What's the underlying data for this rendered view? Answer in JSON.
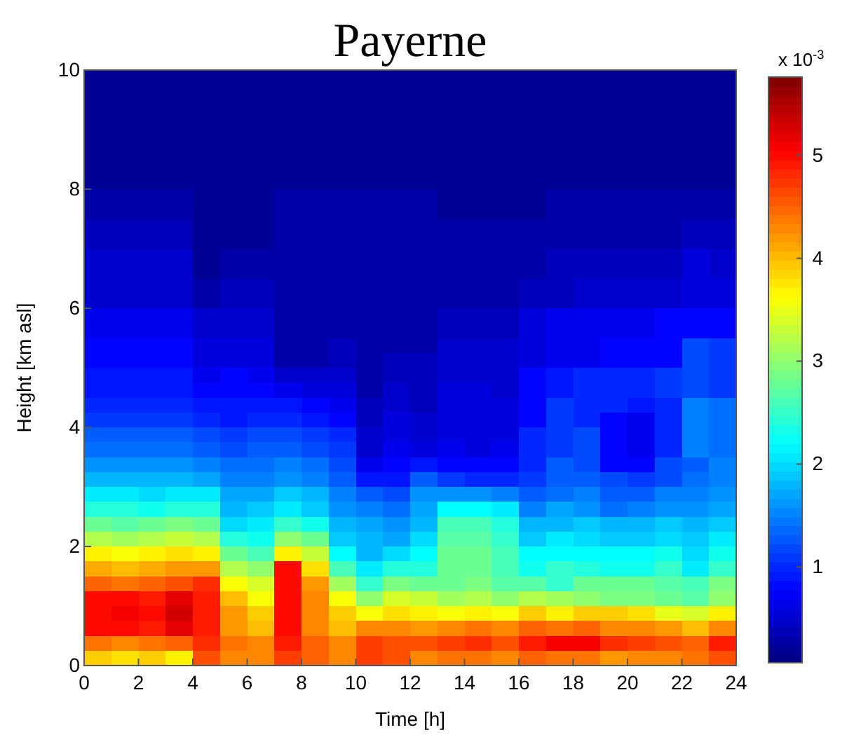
{
  "chart_data": {
    "type": "heatmap",
    "title": "Payerne",
    "xlabel": "Time [h]",
    "ylabel": "Height [km asl]",
    "clabel": "x 10$^{-3}$",
    "xlim": [
      0,
      24
    ],
    "xticks": [
      0,
      2,
      4,
      6,
      8,
      10,
      12,
      14,
      16,
      18,
      20,
      22,
      24
    ],
    "ylim": [
      0,
      10
    ],
    "yticks": [
      0,
      2,
      4,
      6,
      8,
      10
    ],
    "clim": [
      0.07,
      5.76
    ],
    "cticks": [
      1,
      2,
      3,
      4,
      5
    ],
    "cells": [
      [
        0.2,
        0.2,
        0.2,
        0.2,
        0.2,
        0.2,
        0.2,
        0.2,
        0.2,
        0.2,
        0.2,
        0.2,
        0.2,
        0.2,
        0.2,
        0.2,
        0.2,
        0.2,
        0.2,
        0.2,
        0.2,
        0.2,
        0.2,
        0.2
      ],
      [
        0.2,
        0.2,
        0.2,
        0.2,
        0.2,
        0.2,
        0.2,
        0.2,
        0.2,
        0.2,
        0.2,
        0.2,
        0.2,
        0.2,
        0.2,
        0.2,
        0.2,
        0.2,
        0.2,
        0.2,
        0.2,
        0.2,
        0.2,
        0.2
      ],
      [
        0.2,
        0.2,
        0.2,
        0.2,
        0.2,
        0.2,
        0.2,
        0.2,
        0.2,
        0.2,
        0.2,
        0.2,
        0.2,
        0.2,
        0.2,
        0.2,
        0.2,
        0.2,
        0.2,
        0.2,
        0.2,
        0.2,
        0.2,
        0.2
      ],
      [
        0.2,
        0.2,
        0.2,
        0.2,
        0.2,
        0.2,
        0.2,
        0.2,
        0.2,
        0.2,
        0.2,
        0.2,
        0.2,
        0.2,
        0.2,
        0.2,
        0.2,
        0.2,
        0.2,
        0.2,
        0.2,
        0.2,
        0.2,
        0.2
      ],
      [
        0.2,
        0.2,
        0.2,
        0.2,
        0.2,
        0.2,
        0.2,
        0.2,
        0.2,
        0.2,
        0.2,
        0.2,
        0.2,
        0.2,
        0.2,
        0.2,
        0.2,
        0.2,
        0.2,
        0.2,
        0.2,
        0.2,
        0.2,
        0.2
      ],
      [
        0.2,
        0.2,
        0.2,
        0.2,
        0.2,
        0.2,
        0.2,
        0.2,
        0.2,
        0.2,
        0.2,
        0.2,
        0.2,
        0.2,
        0.2,
        0.2,
        0.2,
        0.2,
        0.2,
        0.2,
        0.2,
        0.2,
        0.2,
        0.2
      ],
      [
        0.2,
        0.2,
        0.2,
        0.2,
        0.2,
        0.2,
        0.2,
        0.2,
        0.2,
        0.2,
        0.2,
        0.2,
        0.2,
        0.2,
        0.2,
        0.2,
        0.2,
        0.2,
        0.2,
        0.2,
        0.2,
        0.2,
        0.2,
        0.2
      ],
      [
        0.2,
        0.2,
        0.2,
        0.2,
        0.2,
        0.2,
        0.2,
        0.2,
        0.2,
        0.2,
        0.2,
        0.2,
        0.2,
        0.2,
        0.2,
        0.2,
        0.2,
        0.2,
        0.2,
        0.2,
        0.2,
        0.2,
        0.2,
        0.2
      ],
      [
        0.3,
        0.3,
        0.3,
        0.3,
        0.2,
        0.2,
        0.2,
        0.3,
        0.3,
        0.3,
        0.3,
        0.3,
        0.3,
        0.2,
        0.2,
        0.2,
        0.2,
        0.3,
        0.3,
        0.3,
        0.3,
        0.3,
        0.3,
        0.3
      ],
      [
        0.3,
        0.3,
        0.3,
        0.3,
        0.2,
        0.2,
        0.2,
        0.3,
        0.3,
        0.3,
        0.3,
        0.3,
        0.3,
        0.2,
        0.2,
        0.2,
        0.2,
        0.3,
        0.3,
        0.3,
        0.3,
        0.3,
        0.3,
        0.3
      ],
      [
        0.4,
        0.4,
        0.4,
        0.4,
        0.2,
        0.2,
        0.2,
        0.3,
        0.3,
        0.3,
        0.3,
        0.3,
        0.3,
        0.3,
        0.3,
        0.3,
        0.3,
        0.3,
        0.3,
        0.3,
        0.3,
        0.3,
        0.4,
        0.4
      ],
      [
        0.4,
        0.4,
        0.4,
        0.4,
        0.2,
        0.2,
        0.2,
        0.3,
        0.3,
        0.3,
        0.3,
        0.3,
        0.3,
        0.3,
        0.3,
        0.3,
        0.3,
        0.3,
        0.3,
        0.3,
        0.3,
        0.3,
        0.4,
        0.4
      ],
      [
        0.5,
        0.5,
        0.5,
        0.5,
        0.2,
        0.3,
        0.3,
        0.3,
        0.3,
        0.3,
        0.3,
        0.3,
        0.3,
        0.3,
        0.3,
        0.3,
        0.3,
        0.4,
        0.4,
        0.4,
        0.4,
        0.4,
        0.6,
        0.5
      ],
      [
        0.5,
        0.5,
        0.5,
        0.5,
        0.2,
        0.3,
        0.3,
        0.3,
        0.3,
        0.3,
        0.3,
        0.3,
        0.3,
        0.3,
        0.3,
        0.3,
        0.3,
        0.4,
        0.4,
        0.4,
        0.4,
        0.4,
        0.6,
        0.5
      ],
      [
        0.5,
        0.5,
        0.5,
        0.5,
        0.3,
        0.4,
        0.4,
        0.3,
        0.3,
        0.3,
        0.3,
        0.3,
        0.3,
        0.3,
        0.3,
        0.3,
        0.4,
        0.4,
        0.5,
        0.5,
        0.5,
        0.5,
        0.6,
        0.6
      ],
      [
        0.5,
        0.5,
        0.5,
        0.5,
        0.3,
        0.4,
        0.4,
        0.3,
        0.3,
        0.3,
        0.3,
        0.3,
        0.3,
        0.3,
        0.3,
        0.3,
        0.4,
        0.4,
        0.5,
        0.5,
        0.5,
        0.5,
        0.6,
        0.6
      ],
      [
        0.7,
        0.7,
        0.7,
        0.7,
        0.5,
        0.5,
        0.5,
        0.3,
        0.3,
        0.3,
        0.3,
        0.3,
        0.3,
        0.4,
        0.4,
        0.4,
        0.6,
        0.7,
        0.7,
        0.7,
        0.7,
        0.8,
        0.8,
        0.8
      ],
      [
        0.7,
        0.7,
        0.7,
        0.7,
        0.5,
        0.5,
        0.5,
        0.3,
        0.3,
        0.3,
        0.3,
        0.3,
        0.3,
        0.4,
        0.4,
        0.4,
        0.6,
        0.7,
        0.7,
        0.7,
        0.7,
        0.8,
        0.8,
        0.8
      ],
      [
        0.8,
        0.8,
        0.8,
        0.8,
        0.6,
        0.6,
        0.6,
        0.3,
        0.3,
        0.4,
        0.3,
        0.3,
        0.3,
        0.5,
        0.5,
        0.5,
        0.6,
        0.7,
        0.7,
        0.8,
        0.8,
        0.8,
        1.2,
        1.1
      ],
      [
        0.8,
        0.8,
        0.8,
        0.8,
        0.6,
        0.6,
        0.6,
        0.3,
        0.3,
        0.4,
        0.3,
        0.4,
        0.4,
        0.5,
        0.5,
        0.5,
        0.6,
        0.7,
        0.7,
        0.8,
        0.8,
        0.8,
        1.2,
        1.1
      ],
      [
        0.9,
        0.9,
        0.9,
        0.9,
        0.7,
        0.8,
        0.7,
        0.5,
        0.5,
        0.5,
        0.3,
        0.4,
        0.4,
        0.5,
        0.5,
        0.5,
        0.8,
        0.9,
        1.0,
        1.0,
        1.0,
        1.1,
        1.2,
        1.1
      ],
      [
        0.9,
        0.9,
        0.9,
        0.9,
        0.8,
        0.8,
        0.8,
        0.7,
        0.6,
        0.6,
        0.3,
        0.5,
        0.4,
        0.6,
        0.6,
        0.5,
        0.8,
        0.9,
        1.0,
        1.0,
        1.0,
        1.1,
        1.2,
        1.1
      ],
      [
        1.0,
        1.0,
        1.0,
        1.0,
        0.9,
        0.9,
        0.9,
        0.9,
        0.8,
        0.7,
        0.4,
        0.5,
        0.4,
        0.6,
        0.6,
        0.6,
        0.8,
        1.1,
        1.0,
        1.0,
        0.9,
        1.0,
        1.5,
        1.4
      ],
      [
        1.1,
        1.1,
        1.1,
        1.1,
        1.0,
        0.9,
        1.0,
        1.0,
        0.9,
        0.8,
        0.4,
        0.6,
        0.5,
        0.6,
        0.6,
        0.6,
        0.8,
        1.1,
        1.0,
        0.8,
        0.7,
        1.0,
        1.5,
        1.4
      ],
      [
        1.3,
        1.3,
        1.3,
        1.3,
        1.2,
        1.1,
        1.2,
        1.2,
        1.1,
        1.0,
        0.5,
        0.6,
        0.5,
        0.6,
        0.6,
        0.6,
        1.0,
        1.1,
        1.2,
        0.8,
        0.7,
        1.0,
        1.5,
        1.4
      ],
      [
        1.4,
        1.4,
        1.4,
        1.4,
        1.3,
        1.2,
        1.3,
        1.3,
        1.2,
        1.1,
        0.5,
        0.7,
        0.6,
        0.7,
        0.6,
        0.7,
        1.0,
        1.1,
        1.2,
        0.8,
        0.7,
        1.0,
        1.5,
        1.4
      ],
      [
        1.6,
        1.6,
        1.6,
        1.6,
        1.5,
        1.4,
        1.4,
        1.5,
        1.4,
        1.2,
        0.7,
        0.8,
        0.9,
        0.8,
        0.8,
        0.8,
        1.0,
        1.3,
        1.2,
        0.8,
        0.8,
        1.2,
        1.3,
        1.5
      ],
      [
        1.8,
        1.8,
        1.8,
        1.8,
        1.7,
        1.5,
        1.5,
        1.6,
        1.5,
        1.3,
        0.9,
        0.9,
        1.3,
        1.1,
        1.0,
        1.0,
        1.1,
        1.3,
        1.3,
        1.2,
        1.1,
        1.2,
        1.4,
        1.5
      ],
      [
        2.1,
        2.1,
        2.0,
        2.1,
        2.1,
        1.7,
        1.7,
        1.9,
        1.8,
        1.5,
        1.3,
        1.2,
        1.6,
        1.6,
        1.6,
        1.5,
        1.3,
        1.4,
        1.5,
        1.3,
        1.3,
        1.5,
        1.5,
        1.6
      ],
      [
        2.4,
        2.4,
        2.3,
        2.4,
        2.4,
        1.8,
        1.9,
        2.1,
        1.9,
        1.6,
        1.5,
        1.4,
        1.7,
        2.2,
        2.2,
        2.1,
        1.5,
        1.7,
        1.6,
        1.4,
        1.5,
        1.6,
        1.6,
        1.7
      ],
      [
        2.8,
        2.7,
        2.8,
        2.9,
        2.8,
        2.0,
        2.1,
        2.5,
        2.3,
        1.8,
        1.7,
        1.6,
        1.8,
        2.6,
        2.6,
        2.4,
        1.8,
        1.8,
        1.9,
        1.8,
        1.8,
        1.9,
        1.8,
        1.9
      ],
      [
        3.2,
        3.1,
        3.2,
        3.3,
        3.2,
        2.4,
        2.3,
        3.0,
        2.8,
        1.9,
        1.8,
        1.7,
        2.0,
        2.7,
        2.7,
        2.5,
        1.9,
        2.1,
        2.0,
        1.9,
        1.9,
        2.0,
        1.9,
        2.1
      ],
      [
        3.7,
        3.6,
        3.7,
        3.8,
        3.7,
        2.8,
        2.6,
        3.7,
        3.3,
        2.2,
        1.8,
        2.0,
        2.2,
        2.8,
        2.8,
        2.6,
        2.2,
        2.2,
        2.2,
        2.2,
        2.2,
        2.3,
        2.0,
        2.3
      ],
      [
        4.1,
        4.0,
        4.1,
        4.2,
        4.2,
        3.2,
        3.0,
        5.0,
        3.8,
        2.6,
        2.1,
        2.4,
        2.4,
        2.8,
        2.8,
        2.6,
        2.3,
        2.5,
        2.4,
        2.3,
        2.3,
        2.5,
        2.1,
        2.5
      ],
      [
        4.5,
        4.4,
        4.5,
        4.6,
        4.8,
        3.6,
        3.4,
        5.0,
        4.2,
        3.1,
        2.5,
        2.9,
        2.8,
        2.8,
        2.9,
        2.7,
        2.7,
        2.5,
        2.8,
        2.8,
        2.8,
        2.7,
        2.6,
        2.9
      ],
      [
        5.0,
        5.0,
        4.9,
        5.2,
        4.9,
        4.0,
        3.6,
        5.0,
        4.3,
        3.6,
        3.0,
        3.4,
        3.3,
        3.1,
        3.2,
        3.0,
        3.2,
        3.1,
        3.0,
        2.9,
        2.9,
        2.8,
        2.7,
        3.0
      ],
      [
        5.0,
        5.1,
        5.0,
        5.3,
        4.9,
        4.2,
        3.9,
        5.0,
        4.3,
        3.9,
        3.6,
        3.8,
        3.7,
        3.6,
        3.7,
        3.6,
        3.9,
        3.7,
        3.9,
        3.9,
        3.8,
        3.5,
        3.4,
        3.7
      ],
      [
        5.0,
        5.0,
        4.9,
        5.2,
        4.9,
        4.2,
        4.0,
        5.0,
        4.3,
        4.0,
        4.3,
        4.3,
        4.2,
        4.3,
        4.4,
        4.3,
        4.5,
        4.4,
        4.5,
        4.3,
        4.3,
        4.2,
        4.0,
        4.3
      ],
      [
        4.4,
        4.3,
        4.4,
        4.5,
        4.8,
        4.4,
        4.3,
        4.9,
        4.5,
        4.3,
        4.7,
        4.6,
        4.6,
        4.7,
        4.8,
        4.6,
        4.9,
        5.1,
        5.1,
        4.8,
        4.7,
        4.6,
        4.5,
        4.9
      ],
      [
        3.9,
        3.8,
        3.9,
        3.7,
        4.6,
        4.3,
        4.3,
        4.7,
        4.5,
        4.3,
        4.7,
        4.6,
        4.3,
        4.4,
        4.4,
        4.3,
        4.5,
        4.4,
        4.4,
        4.2,
        4.3,
        4.3,
        4.4,
        4.6
      ]
    ]
  }
}
